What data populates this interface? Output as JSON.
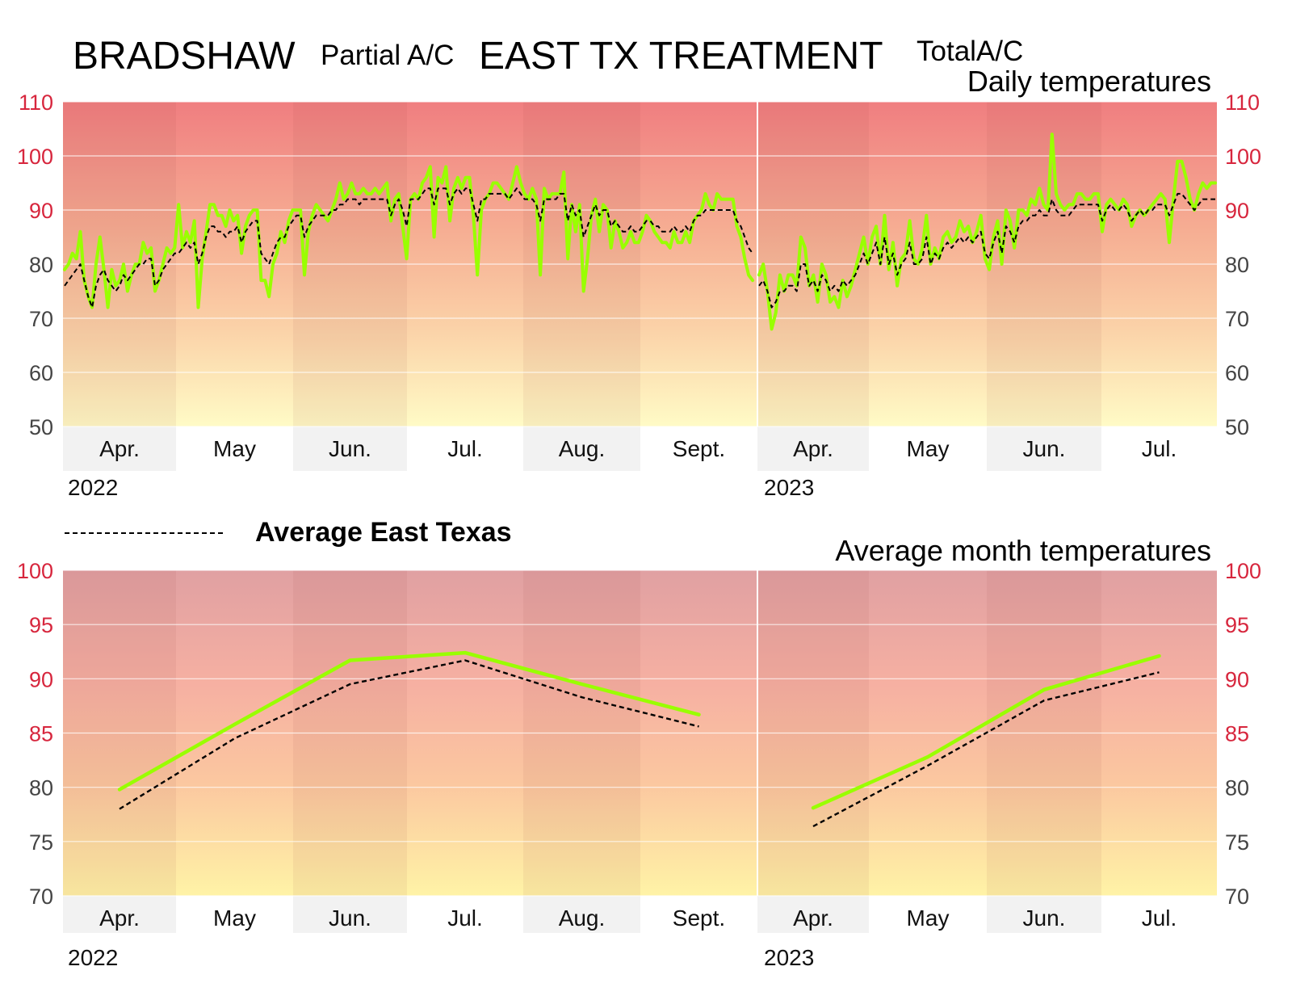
{
  "header": {
    "title_left": "BRADSHAW",
    "subtitle_left": "Partial A/C",
    "title_right": "EAST TX TREATMENT",
    "subtitle_right": "TotalA/C"
  },
  "legend": {
    "dashed_label": "Average East Texas"
  },
  "colors": {
    "series_line": "#99ff00",
    "average_line": "#000000",
    "tick_red": "#d7263d",
    "tick_gray": "#444444",
    "band_light": "#f2f2f2",
    "hot": "#f07a7a",
    "warm": "#f9b48c",
    "cool": "#fffbc8"
  },
  "chart_data": [
    {
      "type": "line",
      "title": "Daily temperatures",
      "ylim": [
        50,
        110
      ],
      "yticks": [
        50,
        60,
        70,
        80,
        90,
        100,
        110
      ],
      "yticks_red": [
        90,
        100,
        110
      ],
      "grid": true,
      "month_labels_2022": [
        "Apr.",
        "May",
        "Jun.",
        "Jul.",
        "Aug.",
        "Sept."
      ],
      "month_labels_2023": [
        "Apr.",
        "May",
        "Jun.",
        "Jul."
      ],
      "year_labels": [
        "2022",
        "2023"
      ],
      "series": [
        {
          "name": "",
          "segments": [
            [
              79,
              80,
              82,
              81,
              86,
              77,
              74,
              72,
              80,
              85,
              79,
              72,
              79,
              76,
              77,
              80,
              75,
              78,
              80,
              80,
              84,
              82,
              83,
              75,
              77,
              80,
              83,
              82,
              83,
              91,
              83,
              86,
              84,
              88,
              72,
              81,
              86,
              91,
              91,
              89,
              89,
              87,
              90,
              88,
              89,
              82,
              87,
              89,
              90,
              90,
              77,
              77,
              74,
              80,
              82,
              86,
              84,
              88,
              90,
              90,
              90,
              78,
              86,
              89,
              91,
              90,
              89,
              88,
              90,
              92,
              95,
              92,
              93,
              95,
              93,
              93,
              94,
              93,
              93,
              94,
              93,
              94,
              95,
              88,
              92,
              93,
              87,
              81,
              92,
              93,
              92,
              95,
              96,
              98,
              85,
              96,
              95,
              98,
              88,
              94,
              96,
              94,
              96,
              96,
              89,
              78,
              90,
              92,
              93,
              95,
              95,
              94,
              93,
              92,
              95,
              98,
              95,
              93,
              92,
              94,
              92,
              78,
              94,
              92,
              93,
              93,
              93,
              97,
              81,
              91,
              86,
              91,
              75,
              81,
              89,
              92,
              86,
              91,
              90,
              83,
              88,
              86,
              83,
              84,
              86,
              84,
              84,
              86,
              89,
              88,
              86,
              85,
              84,
              84,
              83,
              86,
              84,
              84,
              86,
              84,
              88,
              89,
              90,
              93,
              91,
              90,
              93,
              92,
              92,
              92,
              92,
              87,
              85,
              81,
              78,
              77
            ],
            [
              78,
              80,
              75,
              68,
              71,
              78,
              75,
              78,
              78,
              76,
              85,
              83,
              76,
              78,
              73,
              80,
              78,
              73,
              74,
              72,
              77,
              74,
              76,
              79,
              82,
              85,
              80,
              85,
              87,
              80,
              89,
              79,
              84,
              76,
              81,
              82,
              88,
              81,
              80,
              83,
              89,
              80,
              83,
              81,
              85,
              86,
              84,
              85,
              88,
              86,
              87,
              84,
              86,
              89,
              81,
              79,
              85,
              88,
              80,
              90,
              88,
              83,
              90,
              90,
              89,
              92,
              91,
              94,
              91,
              90,
              104,
              93,
              91,
              90,
              91,
              91,
              93,
              93,
              92,
              92,
              93,
              93,
              86,
              91,
              92,
              91,
              90,
              92,
              91,
              87,
              89,
              90,
              89,
              90,
              91,
              92,
              93,
              92,
              84,
              92,
              99,
              99,
              96,
              92,
              90,
              93,
              95,
              94,
              95,
              95
            ]
          ]
        },
        {
          "name": "Average East Texas",
          "segments": [
            [
              76,
              77,
              78,
              79,
              80,
              77,
              74,
              72,
              76,
              78,
              79,
              77,
              76,
              75,
              76,
              78,
              77,
              78,
              79,
              80,
              80,
              81,
              81,
              76,
              77,
              79,
              80,
              81,
              82,
              82,
              83,
              84,
              83,
              84,
              80,
              82,
              85,
              87,
              87,
              86,
              86,
              85,
              86,
              86,
              87,
              84,
              86,
              87,
              88,
              88,
              82,
              81,
              80,
              82,
              84,
              85,
              85,
              87,
              88,
              89,
              89,
              85,
              87,
              88,
              89,
              89,
              89,
              89,
              90,
              90,
              91,
              91,
              92,
              92,
              92,
              91,
              92,
              92,
              92,
              92,
              92,
              92,
              92,
              89,
              91,
              92,
              90,
              87,
              92,
              92,
              92,
              93,
              94,
              94,
              91,
              94,
              94,
              94,
              91,
              93,
              94,
              93,
              94,
              94,
              91,
              88,
              92,
              92,
              93,
              93,
              93,
              93,
              93,
              92,
              93,
              94,
              93,
              92,
              92,
              92,
              91,
              88,
              92,
              92,
              92,
              92,
              93,
              93,
              88,
              91,
              89,
              90,
              85,
              87,
              89,
              91,
              89,
              90,
              90,
              87,
              88,
              87,
              86,
              86,
              87,
              86,
              86,
              87,
              88,
              88,
              87,
              87,
              86,
              86,
              86,
              87,
              86,
              86,
              87,
              86,
              88,
              89,
              89,
              90,
              90,
              90,
              90,
              90,
              90,
              90,
              90,
              88,
              87,
              85,
              83,
              82
            ],
            [
              76,
              77,
              75,
              72,
              73,
              75,
              75,
              76,
              76,
              75,
              80,
              80,
              76,
              77,
              75,
              78,
              77,
              75,
              76,
              75,
              77,
              76,
              77,
              78,
              80,
              82,
              80,
              82,
              84,
              80,
              85,
              80,
              82,
              78,
              80,
              81,
              84,
              80,
              80,
              81,
              85,
              80,
              82,
              81,
              83,
              84,
              83,
              84,
              85,
              84,
              85,
              84,
              85,
              86,
              82,
              81,
              84,
              86,
              82,
              87,
              86,
              84,
              87,
              88,
              88,
              89,
              89,
              90,
              89,
              89,
              92,
              90,
              89,
              89,
              89,
              90,
              91,
              91,
              91,
              91,
              91,
              91,
              88,
              90,
              91,
              90,
              90,
              91,
              90,
              88,
              89,
              90,
              89,
              90,
              90,
              91,
              91,
              91,
              89,
              91,
              93,
              93,
              92,
              91,
              90,
              91,
              92,
              92,
              92,
              92
            ]
          ]
        }
      ]
    },
    {
      "type": "line",
      "title": "Average month temperatures",
      "ylim": [
        70,
        100
      ],
      "yticks": [
        70,
        75,
        80,
        85,
        90,
        95,
        100
      ],
      "yticks_red": [
        85,
        90,
        95,
        100
      ],
      "grid": true,
      "month_labels_2022": [
        "Apr.",
        "May",
        "Jun.",
        "Jul.",
        "Aug.",
        "Sept."
      ],
      "month_labels_2023": [
        "Apr.",
        "May",
        "Jun.",
        "Jul."
      ],
      "year_labels": [
        "2022",
        "2023"
      ],
      "series": [
        {
          "name": "",
          "segments": [
            [
              79.8,
              85.8,
              91.7,
              92.4,
              89.5,
              86.7
            ],
            [
              78.1,
              82.8,
              89.0,
              92.1
            ]
          ]
        },
        {
          "name": "Average East Texas",
          "segments": [
            [
              78.0,
              84.5,
              89.5,
              91.7,
              88.3,
              85.6
            ],
            [
              76.4,
              82.0,
              88.0,
              90.6
            ]
          ]
        }
      ]
    }
  ]
}
